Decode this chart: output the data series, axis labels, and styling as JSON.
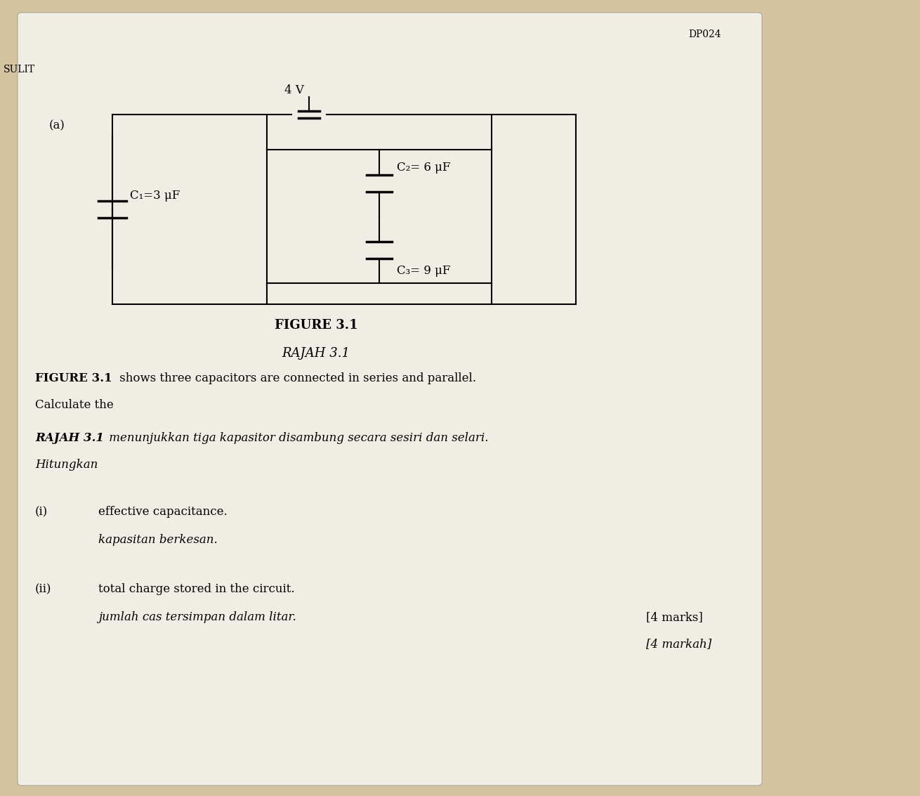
{
  "bg_color": "#d4c5a0",
  "paper_color": "#f0ede5",
  "dp024_text": "DP024",
  "sulit_text": "SULIT",
  "part_label": "(a)",
  "voltage_label": "4 V",
  "c1_label": "C₁=3 μF",
  "c2_label": "C₂= 6 μF",
  "c3_label": "C₃= 9 μF",
  "figure_label_en": "FIGURE 3.1",
  "figure_label_ms": "RAJAH 3.1",
  "desc_line1_bold": "FIGURE 3.1",
  "desc_line1_rest": " shows three capacitors are connected in series and parallel.",
  "desc_line2": "Calculate the",
  "desc_line3_bold": "RAJAH 3.1",
  "desc_line3_rest": " menunjukkan tiga kapasitor disambung secara sesiri dan selari.",
  "desc_line4": "Hitungkan",
  "item_i_label": "(i)",
  "item_i_en": "effective capacitance.",
  "item_i_ms": "kapasitan berkesan.",
  "item_ii_label": "(ii)",
  "item_ii_en": "total charge stored in the circuit.",
  "item_ii_ms": "jumlah cas tersimpan dalam litar.",
  "marks_en": "[4 marks]",
  "marks_ms": "[4 markah]"
}
